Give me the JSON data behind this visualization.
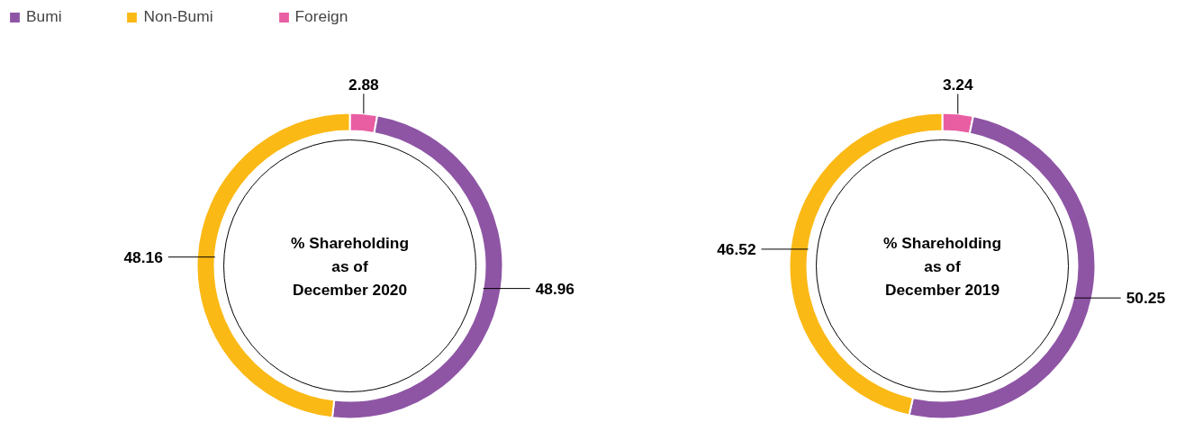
{
  "chart_data": [
    {
      "type": "donut",
      "title": "% Shareholding as of December 2020",
      "categories": [
        "Bumi",
        "Non-Bumi",
        "Foreign"
      ],
      "values": [
        48.96,
        48.16,
        2.88
      ],
      "colors": [
        "#8e55a5",
        "#fbb916",
        "#e95ea2"
      ],
      "data_labels": true,
      "legend": "top left"
    },
    {
      "type": "donut",
      "title": "% Shareholding as of December 2019",
      "categories": [
        null,
        null,
        null
      ],
      "values": [
        50.25,
        46.52,
        3.24
      ],
      "colors": [
        "#8e55a5",
        "#fbb916",
        "#e95ea2"
      ],
      "data_labels": true,
      "legend": false
    }
  ]
}
